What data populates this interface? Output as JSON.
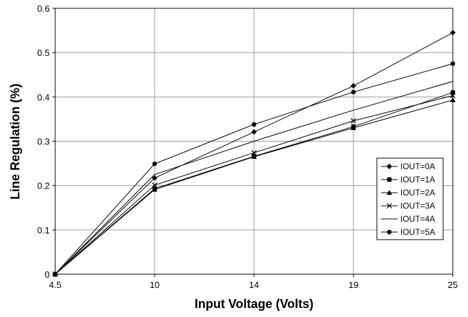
{
  "chart_data": {
    "type": "line",
    "title": "",
    "xlabel": "Input Voltage (Volts)",
    "ylabel": "Line Regulation (%)",
    "categories": [
      "4.5",
      "10",
      "14",
      "19",
      "25"
    ],
    "ylim": [
      0,
      0.6
    ],
    "yticks": [
      "0",
      "0.1",
      "0.2",
      "0.3",
      "0.4",
      "0.5",
      "0.6"
    ],
    "grid": true,
    "legend_position": "right",
    "series": [
      {
        "name": "IOUT=0A",
        "marker": "diamond",
        "values": [
          0,
          0.217,
          0.321,
          0.425,
          0.545
        ]
      },
      {
        "name": "IOUT=1A",
        "marker": "square",
        "values": [
          0,
          0.193,
          0.266,
          0.333,
          0.41
        ]
      },
      {
        "name": "IOUT=2A",
        "marker": "triangle",
        "values": [
          0,
          0.191,
          0.265,
          0.33,
          0.393
        ]
      },
      {
        "name": "IOUT=3A",
        "marker": "x",
        "values": [
          0,
          0.201,
          0.274,
          0.346,
          0.403
        ]
      },
      {
        "name": "IOUT=4A",
        "marker": "none",
        "values": [
          0,
          0.225,
          0.3,
          0.37,
          0.435
        ]
      },
      {
        "name": "IOUT=5A",
        "marker": "circle",
        "values": [
          0,
          0.249,
          0.338,
          0.411,
          0.475
        ]
      }
    ]
  }
}
